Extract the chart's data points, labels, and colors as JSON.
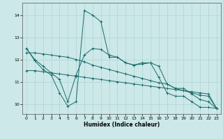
{
  "xlabel": "Humidex (Indice chaleur)",
  "ylabel": "",
  "bg_color": "#cce8e8",
  "line_color": "#1a6b6b",
  "grid_color": "#aed4d4",
  "xlim": [
    -0.5,
    23.5
  ],
  "ylim": [
    9.55,
    14.55
  ],
  "xticks": [
    0,
    1,
    2,
    3,
    4,
    5,
    6,
    7,
    8,
    9,
    10,
    11,
    12,
    13,
    14,
    15,
    16,
    17,
    18,
    19,
    20,
    21,
    22,
    23
  ],
  "yticks": [
    10,
    11,
    12,
    13,
    14
  ],
  "series": [
    {
      "x": [
        0,
        1,
        2,
        3,
        4,
        5,
        6,
        7,
        8,
        9,
        10,
        11,
        12,
        13,
        14,
        15,
        16,
        17,
        18,
        19,
        20,
        21,
        22,
        23
      ],
      "y": [
        12.5,
        12.0,
        11.7,
        11.4,
        11.1,
        10.1,
        11.3,
        12.2,
        12.5,
        12.45,
        12.2,
        12.1,
        11.85,
        11.75,
        11.85,
        11.85,
        11.2,
        10.5,
        10.35,
        10.35,
        10.1,
        9.85,
        9.85,
        9.8
      ]
    },
    {
      "x": [
        0,
        1,
        2,
        3,
        4,
        5,
        6,
        7,
        8,
        9,
        10,
        11,
        12,
        13,
        14,
        15,
        16,
        17,
        18,
        19,
        20,
        21,
        22,
        23
      ],
      "y": [
        12.5,
        11.95,
        11.55,
        11.3,
        10.5,
        9.9,
        10.1,
        14.2,
        14.0,
        13.7,
        12.1,
        12.1,
        11.85,
        11.75,
        11.8,
        11.85,
        11.7,
        10.9,
        10.7,
        10.7,
        10.45,
        10.2,
        10.1,
        9.8
      ]
    },
    {
      "x": [
        0,
        1,
        2,
        3,
        4,
        5,
        6,
        7,
        8,
        9,
        10,
        11,
        12,
        13,
        14,
        15,
        16,
        17,
        18,
        19,
        20,
        21,
        22,
        23
      ],
      "y": [
        11.5,
        11.5,
        11.45,
        11.4,
        11.35,
        11.3,
        11.25,
        11.2,
        11.15,
        11.1,
        11.05,
        11.0,
        10.95,
        10.9,
        10.85,
        10.8,
        10.75,
        10.7,
        10.65,
        10.6,
        10.55,
        10.5,
        10.45,
        9.8
      ]
    },
    {
      "x": [
        0,
        1,
        2,
        3,
        4,
        5,
        6,
        7,
        8,
        9,
        10,
        11,
        12,
        13,
        14,
        15,
        16,
        17,
        18,
        19,
        20,
        21,
        22,
        23
      ],
      "y": [
        12.3,
        12.3,
        12.25,
        12.2,
        12.15,
        12.1,
        12.0,
        11.9,
        11.75,
        11.65,
        11.55,
        11.45,
        11.35,
        11.25,
        11.15,
        11.05,
        10.95,
        10.9,
        10.7,
        10.6,
        10.5,
        10.4,
        10.35,
        9.8
      ]
    }
  ]
}
